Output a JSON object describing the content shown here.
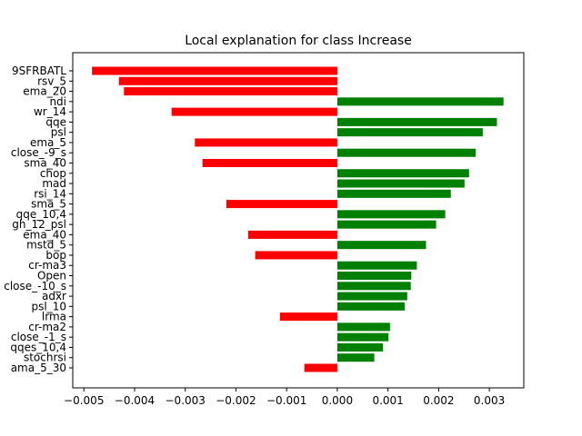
{
  "chart_data": {
    "type": "bar",
    "orientation": "horizontal",
    "title": "Local explanation for class Increase",
    "xlabel": "",
    "ylabel": "",
    "xlim": [
      -0.00522,
      0.00368
    ],
    "xticks": [
      -0.005,
      -0.004,
      -0.003,
      -0.002,
      -0.001,
      0.0,
      0.001,
      0.002,
      0.003
    ],
    "xtick_labels": [
      "−0.005",
      "−0.004",
      "−0.003",
      "−0.002",
      "−0.001",
      "0.000",
      "0.001",
      "0.002",
      "0.003"
    ],
    "grid": false,
    "legend": "none",
    "colors": {
      "positive": "#008000",
      "negative": "#ff0000"
    },
    "categories": [
      "9SFRBATL",
      "rsv_5",
      "ema_20",
      "ndi",
      "wr_14",
      "qqe",
      "psl",
      "ema_5",
      "close_-9_s",
      "sma_40",
      "chop",
      "mad",
      "rsi_14",
      "sma_5",
      "qqe_10,4",
      "gh_12_psl",
      "ema_40",
      "mstd_5",
      "bop",
      "cr-ma3",
      "Open",
      "close_-10_s",
      "adxr",
      "psl_10",
      "lrma",
      "cr-ma2",
      "close_-1_s",
      "qqes_10,4",
      "stochrsi",
      "ama_5_30"
    ],
    "values": [
      -0.00484,
      -0.00431,
      -0.00421,
      0.00328,
      -0.00327,
      0.00315,
      0.00287,
      -0.00281,
      0.00273,
      -0.00266,
      0.0026,
      0.00251,
      0.00224,
      -0.00219,
      0.00213,
      0.00195,
      -0.00176,
      0.00175,
      -0.00162,
      0.00157,
      0.00146,
      0.00145,
      0.00138,
      0.00133,
      -0.00113,
      0.00104,
      0.00101,
      0.0009,
      0.00073,
      -0.00065
    ]
  }
}
